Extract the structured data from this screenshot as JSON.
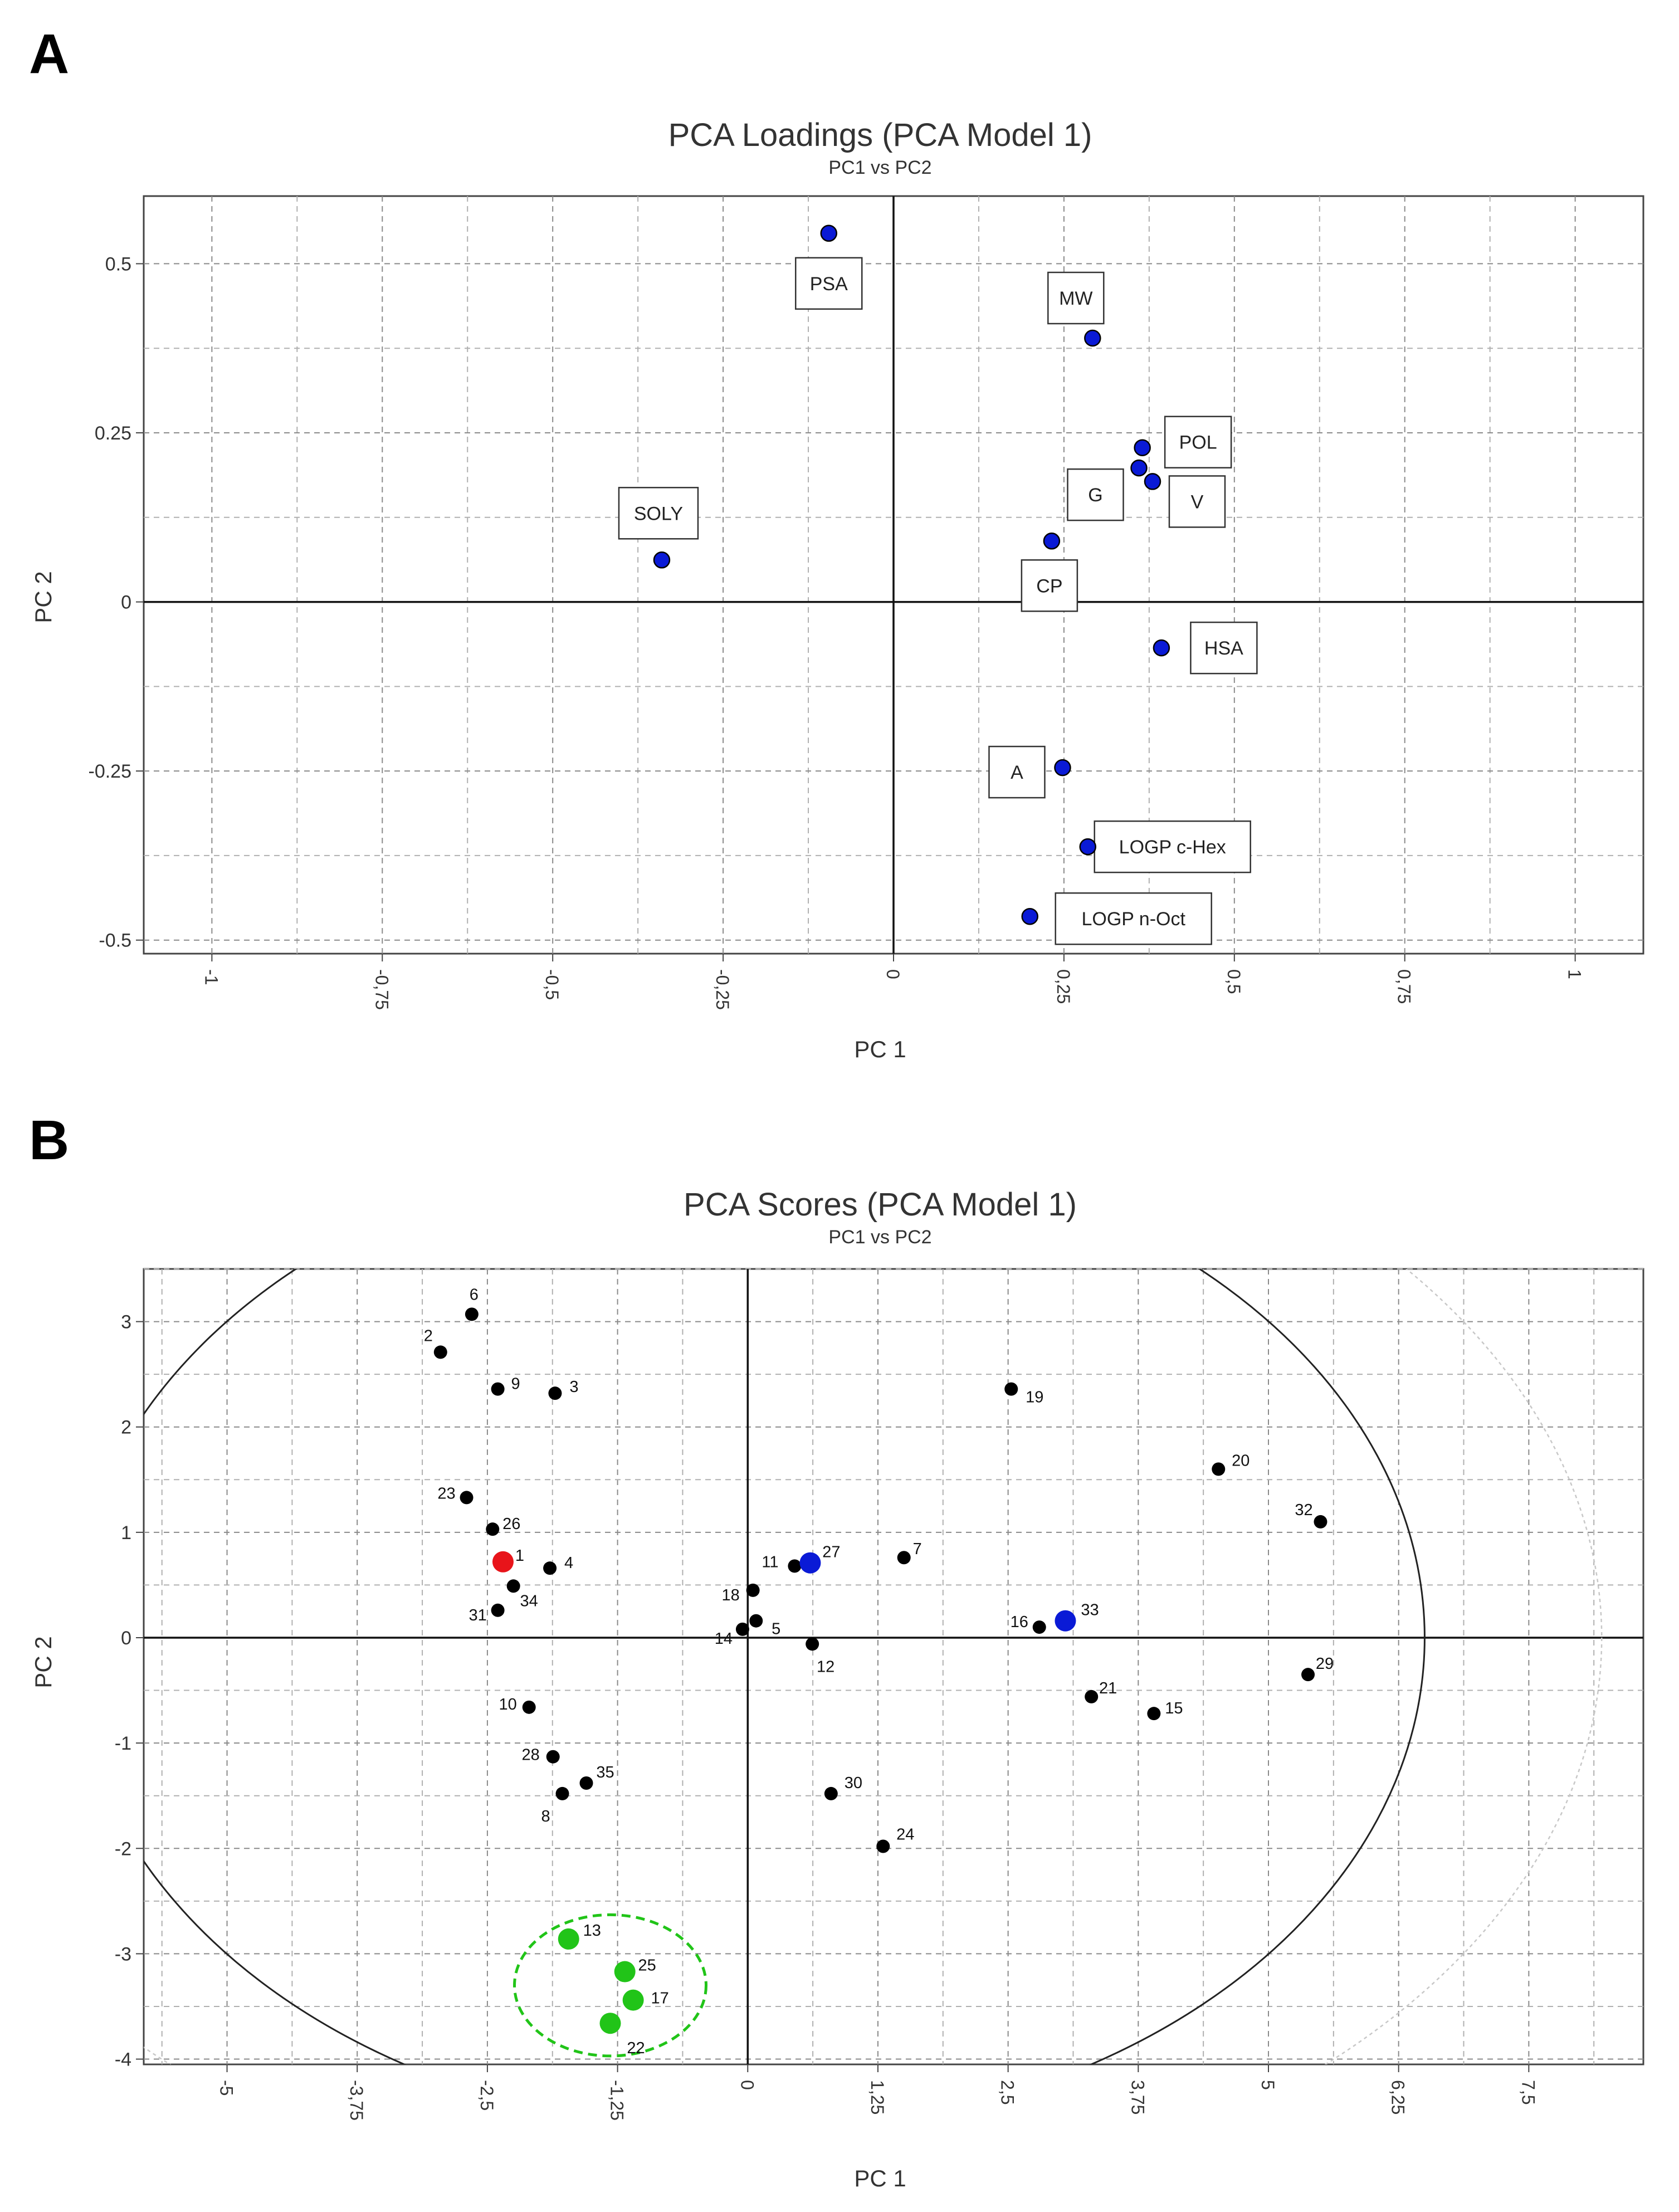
{
  "panels": [
    {
      "letter": "A",
      "chart_data": {
        "type": "scatter",
        "title": "PCA Loadings (PCA Model 1)",
        "subtitle": "PC1 vs PC2",
        "xlabel": "PC 1",
        "ylabel": "PC 2",
        "xlim": [
          -1.1,
          1.1
        ],
        "ylim": [
          -0.52,
          0.6
        ],
        "x_ticks": [
          -1,
          -0.75,
          -0.5,
          -0.25,
          0,
          0.25,
          0.5,
          0.75,
          1
        ],
        "x_tick_labels": [
          "-1",
          "-0,75",
          "-0,5",
          "-0,25",
          "0",
          "0,25",
          "0,5",
          "0,75",
          "1"
        ],
        "y_ticks": [
          -0.5,
          -0.25,
          0,
          0.25,
          0.5
        ],
        "y_tick_labels": [
          "-0.5",
          "-0.25",
          "0",
          "0.25",
          "0.5"
        ],
        "grid": true,
        "point_color": "#0a1ad6",
        "points": [
          {
            "label": "PSA",
            "x": -0.095,
            "y": 0.545
          },
          {
            "label": "MW",
            "x": 0.292,
            "y": 0.39
          },
          {
            "label": "POL",
            "x": 0.365,
            "y": 0.228
          },
          {
            "label": "G",
            "x": 0.36,
            "y": 0.198
          },
          {
            "label": "V",
            "x": 0.38,
            "y": 0.178
          },
          {
            "label": "SOLY",
            "x": -0.34,
            "y": 0.062
          },
          {
            "label": "CP",
            "x": 0.232,
            "y": 0.09
          },
          {
            "label": "HSA",
            "x": 0.393,
            "y": -0.068
          },
          {
            "label": "A",
            "x": 0.248,
            "y": -0.245
          },
          {
            "label": "LOGP c-Hex",
            "x": 0.285,
            "y": -0.362
          },
          {
            "label": "LOGP n-Oct",
            "x": 0.2,
            "y": -0.465
          }
        ]
      }
    },
    {
      "letter": "B",
      "chart_data": {
        "type": "scatter",
        "title": "PCA Scores (PCA Model 1)",
        "subtitle": "PC1 vs PC2",
        "xlabel": "PC 1",
        "ylabel": "PC 2",
        "xlim": [
          -5.8,
          8.6
        ],
        "ylim": [
          -4.05,
          3.5
        ],
        "x_ticks": [
          -5,
          -3.75,
          -2.5,
          -1.25,
          0,
          1.25,
          2.5,
          3.75,
          5,
          6.25,
          7.5
        ],
        "x_tick_labels": [
          "-5",
          "-3,75",
          "-2,5",
          "-1,25",
          "0",
          "1,25",
          "2,5",
          "3,75",
          "5",
          "6,25",
          "7,5"
        ],
        "y_ticks": [
          -4,
          -3,
          -2,
          -1,
          0,
          1,
          2,
          3
        ],
        "y_tick_labels": [
          "-4",
          "-3",
          "-2",
          "-1",
          "0",
          "1",
          "2",
          "3"
        ],
        "grid": true,
        "colors": {
          "default": "#000000",
          "red": "#e8141a",
          "blue": "#0a1ad6",
          "green": "#21c418"
        },
        "points": [
          {
            "label": "6",
            "x": -2.65,
            "y": 3.07,
            "color": "default"
          },
          {
            "label": "2",
            "x": -2.95,
            "y": 2.71,
            "color": "default"
          },
          {
            "label": "9",
            "x": -2.4,
            "y": 2.36,
            "color": "default"
          },
          {
            "label": "3",
            "x": -1.85,
            "y": 2.32,
            "color": "default"
          },
          {
            "label": "19",
            "x": 2.53,
            "y": 2.36,
            "color": "default"
          },
          {
            "label": "20",
            "x": 4.52,
            "y": 1.6,
            "color": "default"
          },
          {
            "label": "23",
            "x": -2.7,
            "y": 1.33,
            "color": "default"
          },
          {
            "label": "32",
            "x": 5.5,
            "y": 1.1,
            "color": "default"
          },
          {
            "label": "26",
            "x": -2.45,
            "y": 1.03,
            "color": "default"
          },
          {
            "label": "1",
            "x": -2.35,
            "y": 0.72,
            "color": "red"
          },
          {
            "label": "4",
            "x": -1.9,
            "y": 0.66,
            "color": "default"
          },
          {
            "label": "34",
            "x": -2.25,
            "y": 0.49,
            "color": "default"
          },
          {
            "label": "31",
            "x": -2.4,
            "y": 0.26,
            "color": "default"
          },
          {
            "label": "7",
            "x": 1.5,
            "y": 0.76,
            "color": "default"
          },
          {
            "label": "11",
            "x": 0.45,
            "y": 0.68,
            "color": "default"
          },
          {
            "label": "27",
            "x": 0.6,
            "y": 0.71,
            "color": "blue"
          },
          {
            "label": "18",
            "x": 0.05,
            "y": 0.45,
            "color": "default"
          },
          {
            "label": "14",
            "x": -0.05,
            "y": 0.08,
            "color": "default"
          },
          {
            "label": "5",
            "x": 0.08,
            "y": 0.16,
            "color": "default"
          },
          {
            "label": "12",
            "x": 0.62,
            "y": -0.06,
            "color": "default"
          },
          {
            "label": "16",
            "x": 2.8,
            "y": 0.1,
            "color": "default"
          },
          {
            "label": "33",
            "x": 3.05,
            "y": 0.16,
            "color": "blue"
          },
          {
            "label": "29",
            "x": 5.38,
            "y": -0.35,
            "color": "default"
          },
          {
            "label": "21",
            "x": 3.3,
            "y": -0.56,
            "color": "default"
          },
          {
            "label": "15",
            "x": 3.9,
            "y": -0.72,
            "color": "default"
          },
          {
            "label": "10",
            "x": -2.1,
            "y": -0.66,
            "color": "default"
          },
          {
            "label": "28",
            "x": -1.87,
            "y": -1.13,
            "color": "default"
          },
          {
            "label": "35",
            "x": -1.55,
            "y": -1.38,
            "color": "default"
          },
          {
            "label": "8",
            "x": -1.78,
            "y": -1.48,
            "color": "default"
          },
          {
            "label": "30",
            "x": 0.8,
            "y": -1.48,
            "color": "default"
          },
          {
            "label": "24",
            "x": 1.3,
            "y": -1.98,
            "color": "default"
          },
          {
            "label": "13",
            "x": -1.72,
            "y": -2.86,
            "color": "green"
          },
          {
            "label": "25",
            "x": -1.18,
            "y": -3.17,
            "color": "green"
          },
          {
            "label": "17",
            "x": -1.1,
            "y": -3.44,
            "color": "green"
          },
          {
            "label": "22",
            "x": -1.32,
            "y": -3.66,
            "color": "green"
          }
        ],
        "ellipse": {
          "cx": 0,
          "cy": 0,
          "rx": 6.5,
          "ry": 4.7
        },
        "outer_ellipse": {
          "cx": 0,
          "cy": 0,
          "rx": 8.2,
          "ry": 5.5
        },
        "cluster_circle": {
          "cx": -1.32,
          "cy": -3.3,
          "rx": 0.92,
          "ry": 0.67
        }
      }
    }
  ]
}
